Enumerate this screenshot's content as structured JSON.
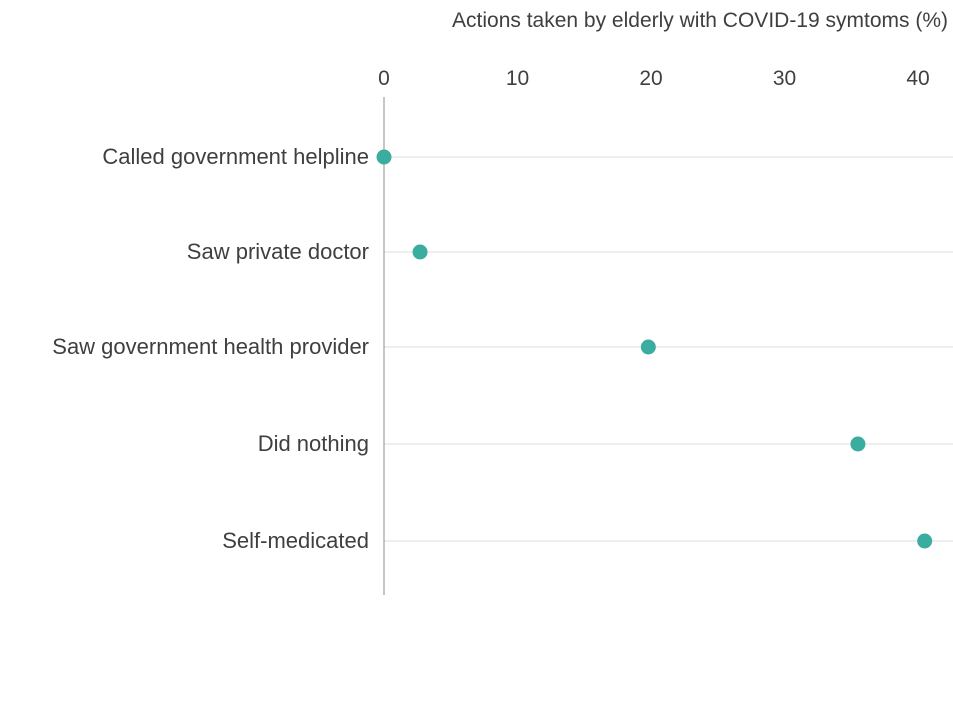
{
  "chart_data": {
    "type": "scatter",
    "title": "Actions taken by elderly with COVID-19 symtoms (%)",
    "xlabel": "",
    "ylabel": "",
    "xlim": [
      0,
      43
    ],
    "x_ticks": [
      "0",
      "10",
      "20",
      "30",
      "40"
    ],
    "x_tick_values": [
      0,
      10,
      20,
      30,
      40
    ],
    "x_axis_position": "top",
    "grid": true,
    "legend": "none",
    "categories": [
      "Called government helpline",
      "Saw private doctor",
      "Saw government health provider",
      "Did nothing",
      "Self-medicated"
    ],
    "values": [
      0,
      2.7,
      19.8,
      35.5,
      40.5
    ],
    "colors": {
      "marker": "#3aada0",
      "grid": "#dddddd",
      "axis": "#8c8c8c",
      "text": "#3f3f3f"
    }
  }
}
